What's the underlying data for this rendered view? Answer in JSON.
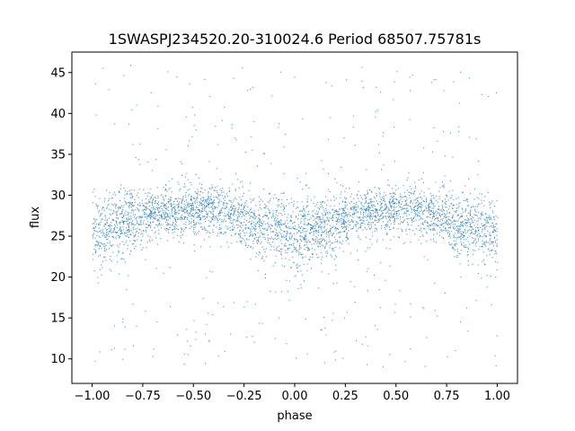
{
  "chart_data": {
    "type": "scatter",
    "title": "1SWASPJ234520.20-310024.6 Period 68507.75781s",
    "xlabel": "phase",
    "ylabel": "flux",
    "xlim": [
      -1.1,
      1.1
    ],
    "ylim": [
      7,
      47.5
    ],
    "xticks": [
      -1.0,
      -0.75,
      -0.5,
      -0.25,
      0.0,
      0.25,
      0.5,
      0.75,
      1.0
    ],
    "xtick_labels": [
      "−1.00",
      "−0.75",
      "−0.50",
      "−0.25",
      "0.00",
      "0.25",
      "0.50",
      "0.75",
      "1.00"
    ],
    "yticks": [
      10,
      15,
      20,
      25,
      30,
      35,
      40,
      45
    ],
    "ytick_labels": [
      "10",
      "15",
      "20",
      "25",
      "30",
      "35",
      "40",
      "45"
    ],
    "grid": false,
    "legend": "none",
    "point_color": "#1f77b4",
    "light_curve": {
      "phase": [
        -1.0,
        -0.9,
        -0.8,
        -0.75,
        -0.6,
        -0.45,
        -0.3,
        -0.2,
        -0.1,
        0.0,
        0.1,
        0.2,
        0.25,
        0.4,
        0.55,
        0.7,
        0.8,
        0.9,
        1.0
      ],
      "median_flux": [
        25.5,
        26.5,
        27.0,
        27.5,
        28.0,
        28.3,
        27.8,
        26.5,
        26.0,
        25.0,
        26.0,
        26.5,
        27.5,
        28.0,
        28.3,
        27.8,
        26.5,
        26.0,
        25.5
      ],
      "spread": [
        3.0,
        3.0,
        2.6,
        2.0,
        1.8,
        2.0,
        2.0,
        2.6,
        2.8,
        3.0,
        2.8,
        2.6,
        2.0,
        1.8,
        2.0,
        2.0,
        2.6,
        2.8,
        3.0
      ]
    }
  }
}
